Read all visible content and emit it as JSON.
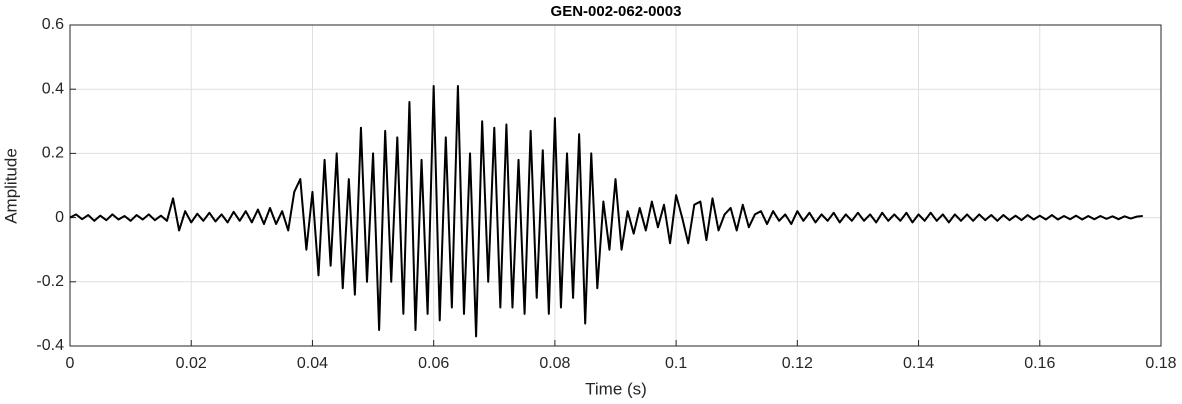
{
  "chart_data": {
    "type": "line",
    "title": "GEN-002-062-0003",
    "xlabel": "Time (s)",
    "ylabel": "Amplitude",
    "xlim": [
      0,
      0.18
    ],
    "ylim": [
      -0.4,
      0.6
    ],
    "xticks": [
      0,
      0.02,
      0.04,
      0.06,
      0.08,
      0.1,
      0.12,
      0.14,
      0.16,
      0.18
    ],
    "yticks": [
      -0.4,
      -0.2,
      0,
      0.2,
      0.4,
      0.6
    ],
    "grid": true,
    "color": "#000000",
    "x": [
      0,
      0.001,
      0.002,
      0.003,
      0.004,
      0.005,
      0.006,
      0.007,
      0.008,
      0.009,
      0.01,
      0.011,
      0.012,
      0.013,
      0.014,
      0.015,
      0.016,
      0.017,
      0.018,
      0.019,
      0.02,
      0.021,
      0.022,
      0.023,
      0.024,
      0.025,
      0.026,
      0.027,
      0.028,
      0.029,
      0.03,
      0.031,
      0.032,
      0.033,
      0.034,
      0.035,
      0.036,
      0.037,
      0.038,
      0.039,
      0.04,
      0.041,
      0.042,
      0.043,
      0.044,
      0.045,
      0.046,
      0.047,
      0.048,
      0.049,
      0.05,
      0.051,
      0.052,
      0.053,
      0.054,
      0.055,
      0.056,
      0.057,
      0.058,
      0.059,
      0.06,
      0.061,
      0.062,
      0.063,
      0.064,
      0.065,
      0.066,
      0.067,
      0.068,
      0.069,
      0.07,
      0.071,
      0.072,
      0.073,
      0.074,
      0.075,
      0.076,
      0.077,
      0.078,
      0.079,
      0.08,
      0.081,
      0.082,
      0.083,
      0.084,
      0.085,
      0.086,
      0.087,
      0.088,
      0.089,
      0.09,
      0.091,
      0.092,
      0.093,
      0.094,
      0.095,
      0.096,
      0.097,
      0.098,
      0.099,
      0.1,
      0.101,
      0.102,
      0.103,
      0.104,
      0.105,
      0.106,
      0.107,
      0.108,
      0.109,
      0.11,
      0.111,
      0.112,
      0.113,
      0.114,
      0.115,
      0.116,
      0.117,
      0.118,
      0.119,
      0.12,
      0.121,
      0.122,
      0.123,
      0.124,
      0.125,
      0.126,
      0.127,
      0.128,
      0.129,
      0.13,
      0.131,
      0.132,
      0.133,
      0.134,
      0.135,
      0.136,
      0.137,
      0.138,
      0.139,
      0.14,
      0.141,
      0.142,
      0.143,
      0.144,
      0.145,
      0.146,
      0.147,
      0.148,
      0.149,
      0.15,
      0.151,
      0.152,
      0.153,
      0.154,
      0.155,
      0.156,
      0.157,
      0.158,
      0.159,
      0.16,
      0.161,
      0.162,
      0.163,
      0.164,
      0.165,
      0.166,
      0.167,
      0.168,
      0.169,
      0.17,
      0.171,
      0.172,
      0.173,
      0.174,
      0.175,
      0.176,
      0.177
    ],
    "values": [
      0,
      0.01,
      -0.005,
      0.008,
      -0.01,
      0.006,
      -0.008,
      0.01,
      -0.006,
      0.005,
      -0.01,
      0.008,
      -0.006,
      0.01,
      -0.008,
      0.006,
      -0.01,
      0.06,
      -0.04,
      0.02,
      -0.015,
      0.012,
      -0.01,
      0.015,
      -0.012,
      0.01,
      -0.015,
      0.018,
      -0.01,
      0.02,
      -0.015,
      0.025,
      -0.02,
      0.03,
      -0.02,
      0.02,
      -0.04,
      0.08,
      0.12,
      -0.1,
      0.08,
      -0.18,
      0.18,
      -0.15,
      0.2,
      -0.22,
      0.12,
      -0.24,
      0.28,
      -0.2,
      0.2,
      -0.35,
      0.27,
      -0.2,
      0.25,
      -0.3,
      0.36,
      -0.35,
      0.18,
      -0.3,
      0.41,
      -0.32,
      0.25,
      -0.28,
      0.41,
      -0.3,
      0.2,
      -0.37,
      0.3,
      -0.2,
      0.28,
      -0.28,
      0.29,
      -0.28,
      0.18,
      -0.3,
      0.27,
      -0.25,
      0.21,
      -0.3,
      0.31,
      -0.28,
      0.2,
      -0.25,
      0.26,
      -0.33,
      0.2,
      -0.22,
      0.05,
      -0.1,
      0.12,
      -0.1,
      0.02,
      -0.05,
      0.03,
      -0.04,
      0.05,
      -0.03,
      0.04,
      -0.08,
      0.07,
      0,
      -0.08,
      0.04,
      0.05,
      -0.07,
      0.06,
      -0.04,
      0.01,
      0.03,
      -0.04,
      0.04,
      -0.03,
      0.01,
      0.02,
      -0.02,
      0.02,
      -0.01,
      0.01,
      -0.02,
      0.02,
      -0.01,
      0.015,
      -0.015,
      0.01,
      -0.01,
      0.015,
      -0.015,
      0.01,
      -0.01,
      0.015,
      -0.01,
      0.01,
      -0.015,
      0.015,
      -0.01,
      0.01,
      -0.01,
      0.015,
      -0.015,
      0.01,
      -0.01,
      0.015,
      -0.01,
      0.01,
      -0.015,
      0.01,
      -0.01,
      0.01,
      -0.01,
      0.01,
      -0.008,
      0.008,
      -0.01,
      0.008,
      -0.008,
      0.006,
      -0.008,
      0.008,
      -0.006,
      0.006,
      -0.006,
      0.008,
      -0.006,
      0.005,
      -0.005,
      0.006,
      -0.006,
      0.005,
      -0.005,
      0.005,
      -0.004,
      0.004,
      -0.005,
      0.004,
      -0.003,
      0.003,
      0.005
    ]
  }
}
